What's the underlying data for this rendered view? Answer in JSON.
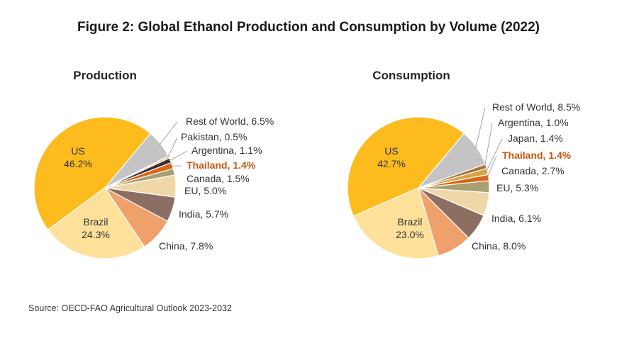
{
  "title": "Figure 2: Global Ethanol Production and Consumption by Volume (2022)",
  "source": "Source: OECD-FAO Agricultural Outlook 2023-2032",
  "highlight_color": "#c65911",
  "chart_data": [
    {
      "type": "pie",
      "title": "Production",
      "slices": [
        {
          "label": "US",
          "value": 46.2,
          "color": "#fdbb1e"
        },
        {
          "label": "Brazil",
          "value": 24.3,
          "color": "#fde19b"
        },
        {
          "label": "China",
          "value": 7.8,
          "color": "#f0a06a"
        },
        {
          "label": "India",
          "value": 5.7,
          "color": "#8c6e63"
        },
        {
          "label": "EU",
          "value": 5.0,
          "color": "#f0d7a8"
        },
        {
          "label": "Canada",
          "value": 1.5,
          "color": "#a89f72"
        },
        {
          "label": "Thailand",
          "value": 1.4,
          "color": "#d9661a",
          "highlight": true
        },
        {
          "label": "Argentina",
          "value": 1.1,
          "color": "#3a2e2e"
        },
        {
          "label": "Pakistan",
          "value": 0.5,
          "color": "#e8c6a0"
        },
        {
          "label": "Rest of World",
          "value": 6.5,
          "color": "#c4c4c4"
        }
      ]
    },
    {
      "type": "pie",
      "title": "Consumption",
      "slices": [
        {
          "label": "US",
          "value": 42.7,
          "color": "#fdbb1e"
        },
        {
          "label": "Brazil",
          "value": 23.0,
          "color": "#fde19b"
        },
        {
          "label": "China",
          "value": 8.0,
          "color": "#f0a06a"
        },
        {
          "label": "India",
          "value": 6.1,
          "color": "#8c6e63"
        },
        {
          "label": "EU",
          "value": 5.3,
          "color": "#f0d7a8"
        },
        {
          "label": "Canada",
          "value": 2.7,
          "color": "#a89f72"
        },
        {
          "label": "Thailand",
          "value": 1.4,
          "color": "#d9661a",
          "highlight": true
        },
        {
          "label": "Japan",
          "value": 1.4,
          "color": "#d9a441"
        },
        {
          "label": "Argentina",
          "value": 1.0,
          "color": "#a6763a"
        },
        {
          "label": "Rest of World",
          "value": 8.5,
          "color": "#c4c4c4"
        }
      ]
    }
  ]
}
